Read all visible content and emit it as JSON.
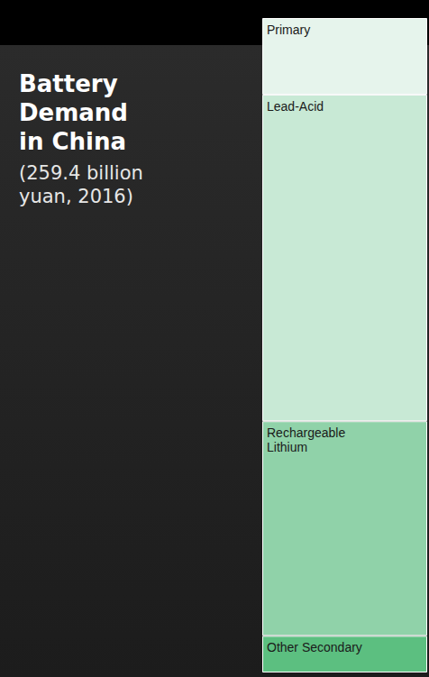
{
  "chart_data": {
    "type": "bar",
    "title": "Battery Demand in China",
    "subtitle": "(259.4 billion yuan, 2016)",
    "stacked": true,
    "data_labels": false,
    "tick_labels": false,
    "series": [
      {
        "name": "Primary",
        "color": "#e6f4ec",
        "values": [
          11.7
        ]
      },
      {
        "name": "Lead-Acid",
        "color": "#c8e9d5",
        "values": [
          49.9
        ]
      },
      {
        "name": "Rechargeable Lithium",
        "color": "#90d2a9",
        "values": [
          32.8
        ]
      },
      {
        "name": "Other Secondary",
        "color": "#5cbf80",
        "values": [
          5.6
        ]
      }
    ]
  }
}
